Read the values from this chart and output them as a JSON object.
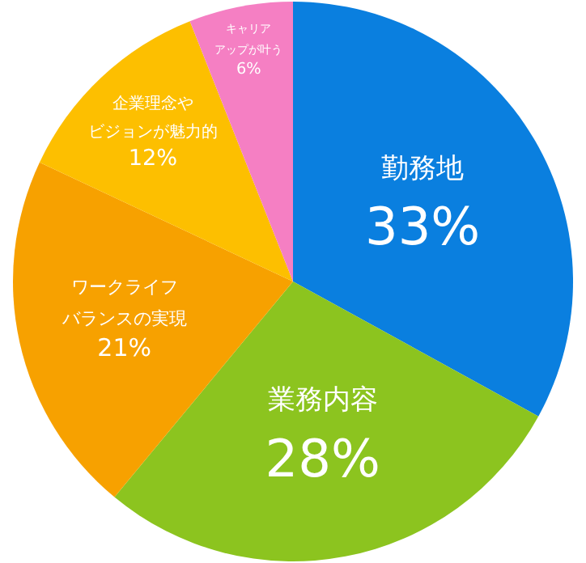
{
  "chart_data": {
    "type": "pie",
    "categories": [
      "勤務地",
      "業務内容",
      "ワークライフバランスの実現",
      "企業理念やビジョンが魅力的",
      "キャリアアップが叶う"
    ],
    "values": [
      33,
      28,
      21,
      12,
      6
    ],
    "value_labels": [
      "33%",
      "28%",
      "21%",
      "12%",
      "6%"
    ],
    "colors": [
      "#0a7fdf",
      "#8cc41f",
      "#f7a100",
      "#fdbf00",
      "#f57fc3"
    ],
    "legend": false
  }
}
